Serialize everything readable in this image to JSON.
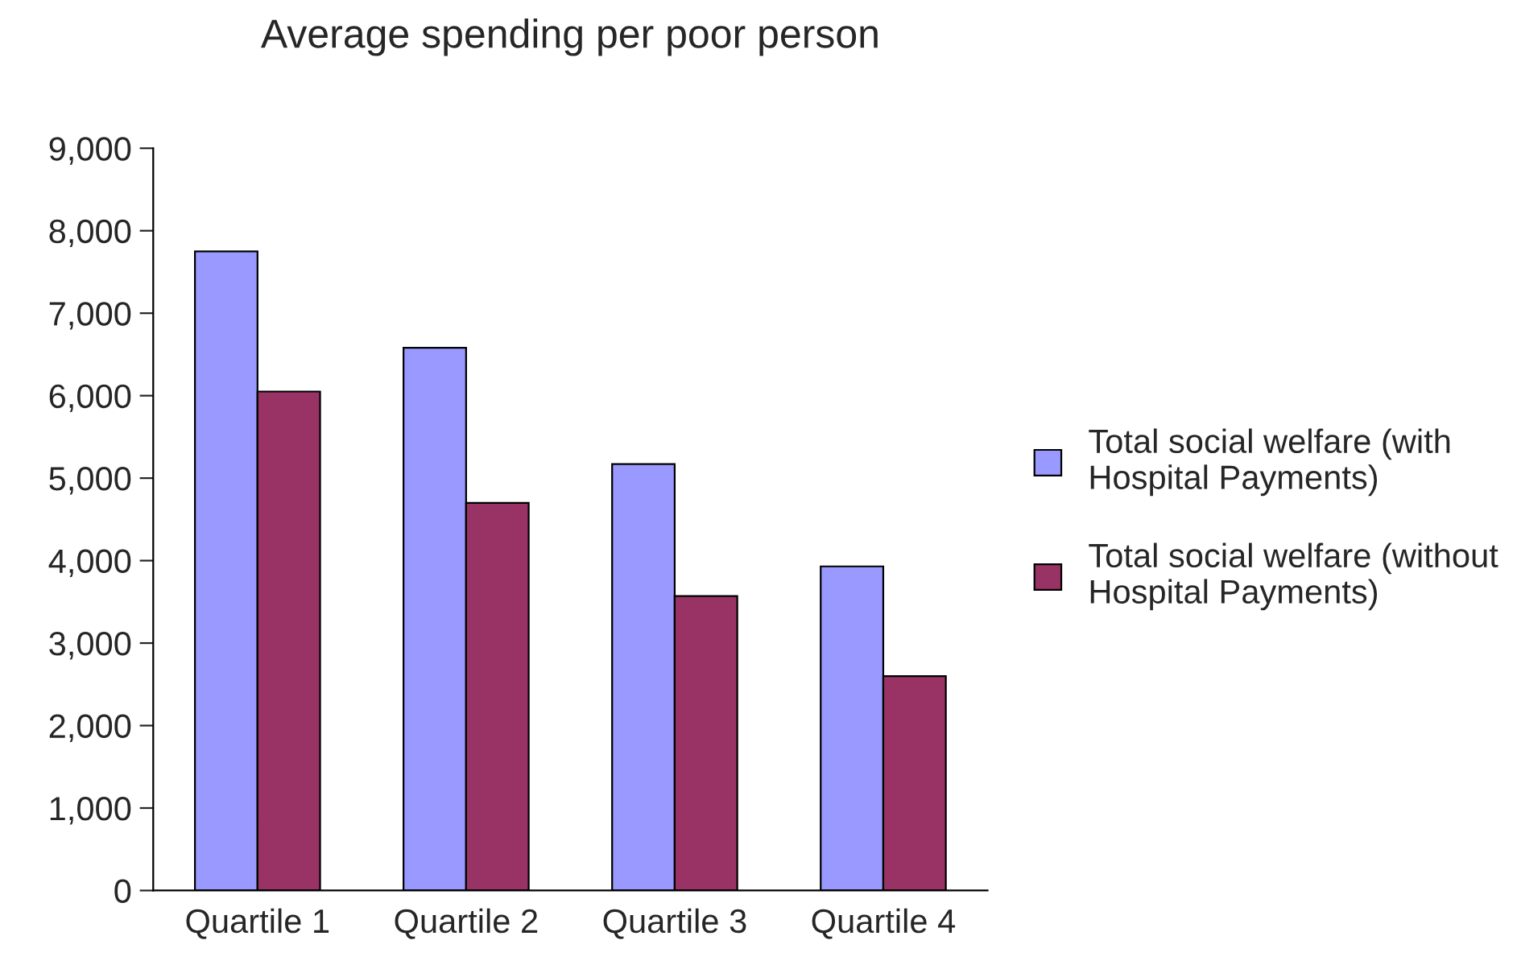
{
  "chart_data": {
    "type": "bar",
    "title": "Average spending per poor person",
    "categories": [
      "Quartile 1",
      "Quartile 2",
      "Quartile 3",
      "Quartile 4"
    ],
    "series": [
      {
        "name": "Total social welfare (with Hospital Payments)",
        "color": "#9999ff",
        "values": [
          7750,
          6580,
          5170,
          3930
        ]
      },
      {
        "name": "Total social welfare (without Hospital Payments)",
        "color": "#993366",
        "values": [
          6050,
          4700,
          3570,
          2600
        ]
      }
    ],
    "ylim": [
      0,
      9000
    ],
    "yticks": [
      0,
      {
        "value": 1000,
        "label": "1,000"
      },
      {
        "value": 2000,
        "label": "2,000"
      },
      {
        "value": 3000,
        "label": "3,000"
      },
      {
        "value": 4000,
        "label": "4,000"
      },
      {
        "value": 5000,
        "label": "5,000"
      },
      {
        "value": 6000,
        "label": "6,000"
      },
      {
        "value": 7000,
        "label": "7,000"
      },
      {
        "value": 8000,
        "label": "8,000"
      },
      {
        "value": 9000,
        "label": "9,000"
      }
    ],
    "grid": false,
    "legend": "right"
  }
}
